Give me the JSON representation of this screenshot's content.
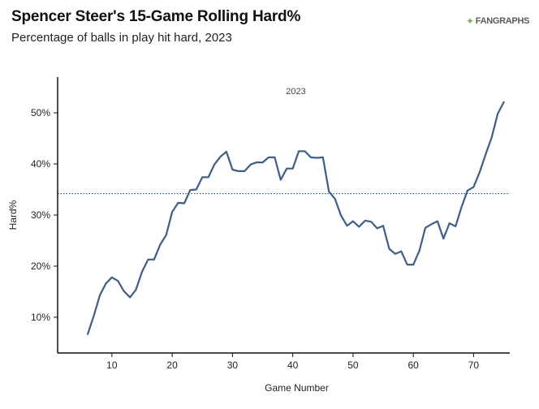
{
  "header": {
    "title": "Spencer Steer's 15-Game Rolling Hard%",
    "subtitle": "Percentage of balls in play hit hard, 2023",
    "logo_text": "FANGRAPHS",
    "logo_mark": "✦"
  },
  "colors": {
    "line": "#3a5f8f",
    "axis": "#111111",
    "reference": "#2f4f7a",
    "logo_mark": "#6bbd45"
  },
  "chart_data": {
    "type": "line",
    "title": "Spencer Steer's 15-Game Rolling Hard%",
    "subtitle": "Percentage of balls in play hit hard, 2023",
    "annotation": "2023",
    "xlabel": "Game Number",
    "ylabel": "Hard%",
    "xlim": [
      1,
      76
    ],
    "ylim": [
      3,
      57
    ],
    "xticks": [
      10,
      20,
      30,
      40,
      50,
      60,
      70
    ],
    "yticks": [
      10,
      20,
      30,
      40,
      50
    ],
    "ytick_labels": [
      "10%",
      "20%",
      "30%",
      "40%",
      "50%"
    ],
    "reference_line": 34.2,
    "grid": false,
    "series": [
      {
        "x": [
          6,
          7,
          8,
          9,
          10,
          11,
          12,
          13,
          14,
          15,
          16,
          17,
          18,
          19,
          20,
          21,
          22,
          23,
          24,
          25,
          26,
          27,
          28,
          29,
          30,
          31,
          32,
          33,
          34,
          35,
          36,
          37,
          38,
          39,
          40,
          41,
          42,
          43,
          44,
          45,
          46,
          47,
          48,
          49,
          50,
          51,
          52,
          53,
          54,
          55,
          56,
          57,
          58,
          59,
          60,
          61,
          62,
          63,
          64,
          65,
          66,
          67,
          68,
          69,
          70,
          71,
          72,
          73,
          74,
          75
        ],
        "values": [
          6.7,
          10.3,
          14.3,
          16.6,
          17.8,
          17.1,
          15.1,
          13.9,
          15.4,
          18.9,
          21.3,
          21.3,
          24.2,
          26.1,
          30.6,
          32.4,
          32.3,
          34.9,
          35.0,
          37.4,
          37.4,
          39.9,
          41.4,
          42.4,
          38.9,
          38.6,
          38.6,
          39.9,
          40.3,
          40.3,
          41.3,
          41.3,
          36.9,
          39.1,
          39.1,
          42.5,
          42.5,
          41.3,
          41.2,
          41.3,
          34.6,
          33.2,
          29.9,
          27.9,
          28.8,
          27.7,
          28.9,
          28.7,
          27.4,
          27.9,
          23.4,
          22.4,
          22.9,
          20.3,
          20.3,
          23.0,
          27.5,
          28.2,
          28.8,
          25.4,
          28.4,
          27.8,
          31.6,
          34.8,
          35.5,
          38.4,
          41.9,
          45.2,
          49.8,
          52.1
        ]
      }
    ]
  }
}
